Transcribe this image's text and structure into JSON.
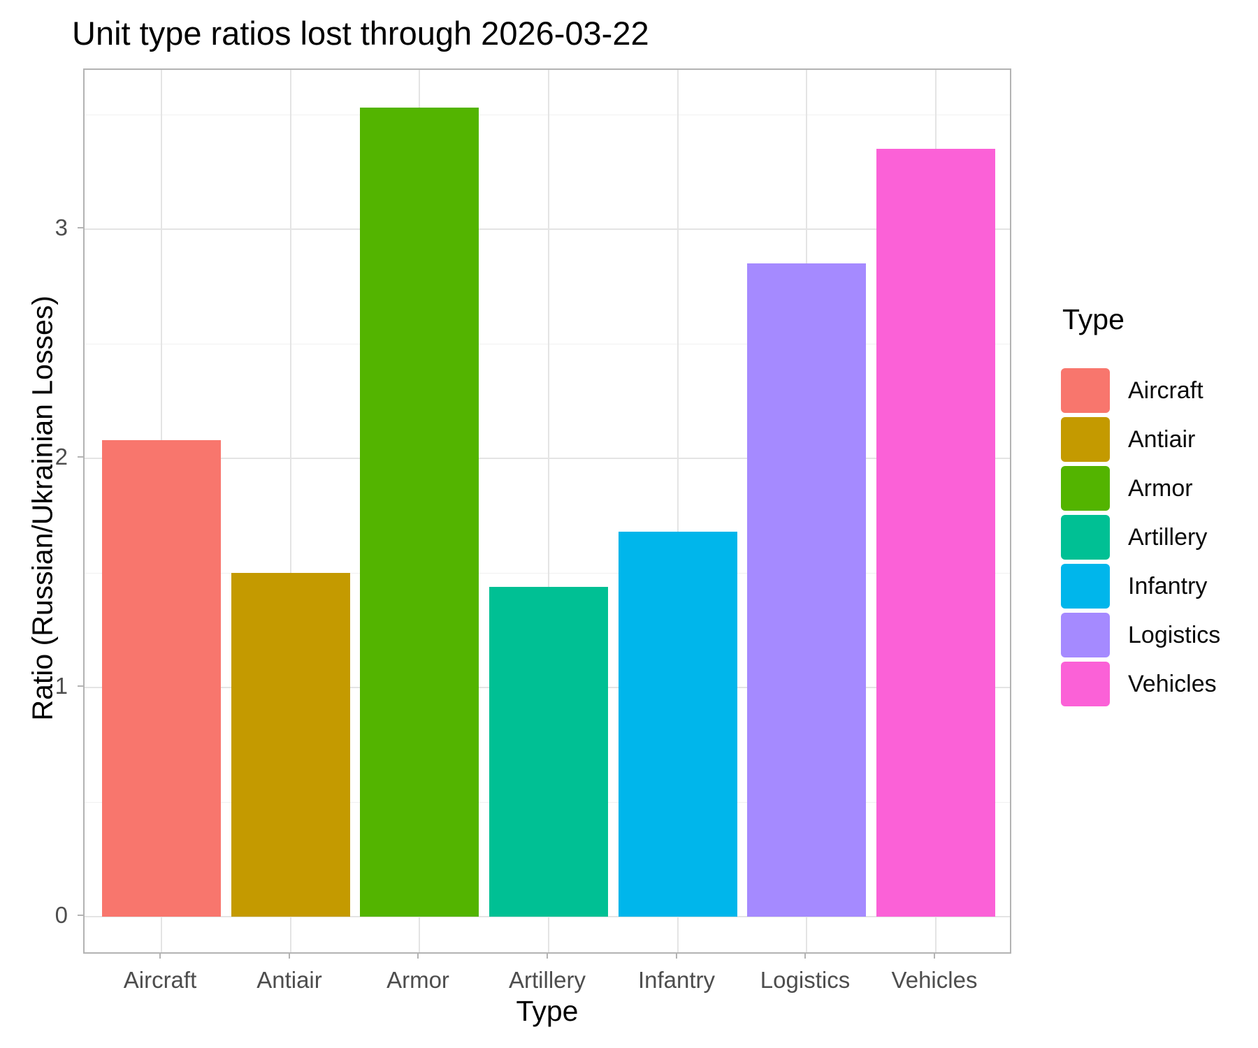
{
  "chart_data": {
    "type": "bar",
    "title": "Unit type ratios lost through 2026-03-22",
    "xlabel": "Type",
    "ylabel": "Ratio (Russian/Ukrainian Losses)",
    "categories": [
      "Aircraft",
      "Antiair",
      "Armor",
      "Artillery",
      "Infantry",
      "Logistics",
      "Vehicles"
    ],
    "values": [
      2.08,
      1.5,
      3.53,
      1.44,
      1.68,
      2.85,
      3.35
    ],
    "bar_colors": [
      "#F8766D",
      "#C49A00",
      "#53B400",
      "#00C094",
      "#00B6EB",
      "#A58AFF",
      "#FB61D7"
    ],
    "ylim": [
      0,
      3.7
    ],
    "yticks": [
      0,
      1,
      2,
      3
    ],
    "minor_yticks": [
      0.5,
      1.5,
      2.5,
      3.5
    ],
    "grid": true,
    "legend": {
      "title": "Type",
      "position": "right",
      "entries": [
        "Aircraft",
        "Antiair",
        "Armor",
        "Artillery",
        "Infantry",
        "Logistics",
        "Vehicles"
      ]
    },
    "theme": {
      "panel_border": "#B3B3B3",
      "grid_major": "#E4E4E4",
      "grid_minor": "#F1F1F1",
      "tick_label_color": "#4D4D4D",
      "text_color": "#000000",
      "background": "#FFFFFF"
    }
  }
}
